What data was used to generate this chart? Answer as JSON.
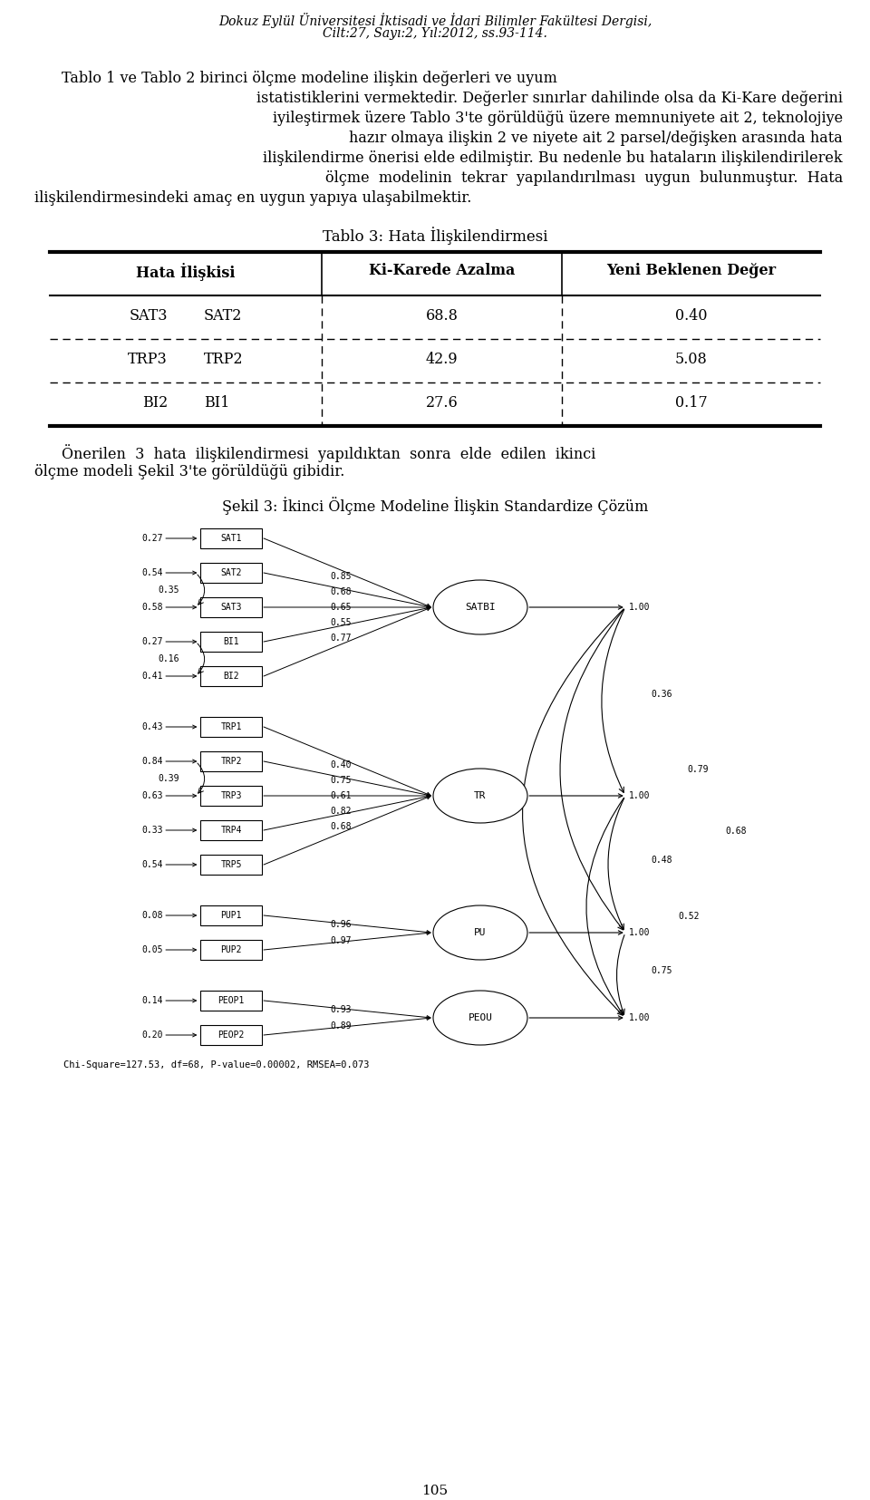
{
  "header_line1": "Dokuz Eylül Üniversitesi İktisadi ve İdari Bilimler Fakültesi Dergisi,",
  "header_line2": "Cilt:27, Sayı:2, Yıl:2012, ss.93-114.",
  "table_title": "Tablo 3: Hata İlişkilendirmesi",
  "col_headers": [
    "Hata İlişkisi",
    "Ki-Karede Azalma",
    "Yeni Beklenen Değer"
  ],
  "rows": [
    [
      "SAT3",
      "SAT2",
      "68.8",
      "0.40"
    ],
    [
      "TRP3",
      "TRP2",
      "42.9",
      "5.08"
    ],
    [
      "BI2",
      "BI1",
      "27.6",
      "0.17"
    ]
  ],
  "fig_title": "Şekil 3: İkinci Ölçme Modeline İlişkin Standardize Çözüm",
  "chi_text": "Chi-Square=127.53, df=68, P-value=0.00002, RMSEA=0.073",
  "page_num": "105",
  "boxes": [
    "SAT1",
    "SAT2",
    "SAT3",
    "BI1",
    "BI2",
    "TRP1",
    "TRP2",
    "TRP3",
    "TRP4",
    "TRP5",
    "PUP1",
    "PUP2",
    "PEOP1",
    "PEOP2"
  ],
  "box_left_vals": [
    [
      "0.27",
      -1
    ],
    [
      "0.54",
      -1
    ],
    [
      "0.35",
      1
    ],
    [
      "0.58",
      -1
    ],
    [
      "0.27",
      -1
    ],
    [
      "0.16",
      1
    ],
    [
      "0.41",
      -1
    ],
    [
      "0.43",
      -1
    ],
    [
      "0.84",
      -1
    ],
    [
      "0.39",
      1
    ],
    [
      "0.63",
      -1
    ],
    [
      "0.33",
      -1
    ],
    [
      "0.54",
      -1
    ],
    [
      "0.08",
      -1
    ],
    [
      "0.05",
      -1
    ],
    [
      "0.14",
      -1
    ],
    [
      "0.20",
      -1
    ]
  ],
  "path_vals_satbi": [
    "0.85",
    "0.68",
    "0.65",
    "0.55",
    "0.77"
  ],
  "path_vals_tr": [
    "0.75",
    "0.40",
    "0.61",
    "0.82",
    "0.68"
  ],
  "path_vals_pu": [
    "0.96",
    "0.97"
  ],
  "path_vals_peou": [
    "0.93",
    "0.89"
  ],
  "corr_labels": {
    "SATBI_TR": "0.36",
    "SATBI_PU": "0.79",
    "SATBI_PEOU": "0.68",
    "TR_PU": "0.48",
    "TR_PEOU": "0.52",
    "PU_PEOU": "0.75"
  }
}
